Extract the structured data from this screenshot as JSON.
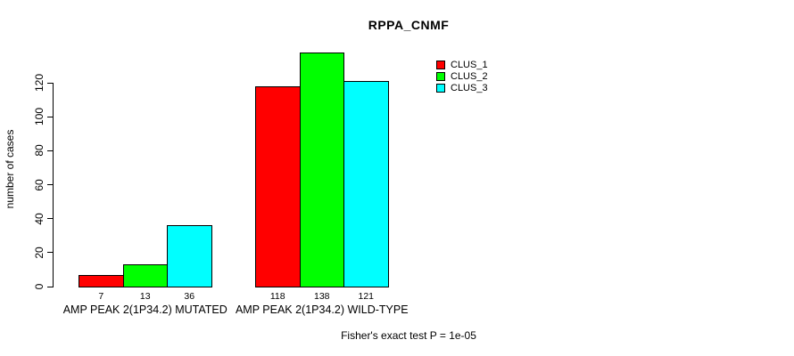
{
  "title": "RPPA_CNMF",
  "footer_note": "Fisher's exact test P = 1e-05",
  "chart_data": {
    "type": "bar",
    "title": "RPPA_CNMF",
    "xlabel": "",
    "ylabel": "number of cases",
    "ylim": [
      0,
      140
    ],
    "yticks": [
      0,
      20,
      40,
      60,
      80,
      100,
      120
    ],
    "grid": false,
    "legend_position": "top-right",
    "categories": [
      "AMP PEAK 2(1P34.2) MUTATED",
      "AMP PEAK 2(1P34.2) WILD-TYPE"
    ],
    "series": [
      {
        "name": "CLUS_1",
        "color": "#ff0000",
        "values": [
          7,
          118
        ]
      },
      {
        "name": "CLUS_2",
        "color": "#00ff00",
        "values": [
          13,
          138
        ]
      },
      {
        "name": "CLUS_3",
        "color": "#00ffff",
        "values": [
          36,
          121
        ]
      }
    ],
    "bar_value_labels": [
      [
        7,
        13,
        36
      ],
      [
        118,
        138,
        121
      ]
    ],
    "annotation": "Fisher's exact test P = 1e-05"
  }
}
